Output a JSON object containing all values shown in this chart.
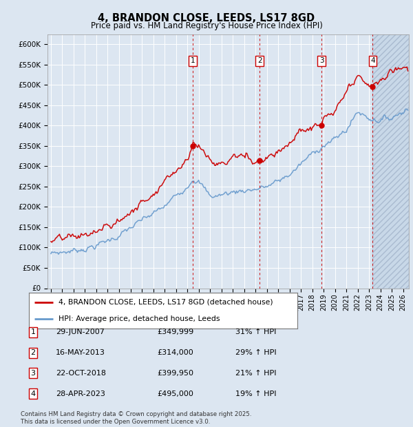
{
  "title": "4, BRANDON CLOSE, LEEDS, LS17 8GD",
  "subtitle": "Price paid vs. HM Land Registry's House Price Index (HPI)",
  "background_color": "#dce6f1",
  "plot_bg_color": "#dce6f1",
  "grid_color": "#ffffff",
  "ylim": [
    0,
    625000
  ],
  "yticks": [
    0,
    50000,
    100000,
    150000,
    200000,
    250000,
    300000,
    350000,
    400000,
    450000,
    500000,
    550000,
    600000
  ],
  "ytick_labels": [
    "£0",
    "£50K",
    "£100K",
    "£150K",
    "£200K",
    "£250K",
    "£300K",
    "£350K",
    "£400K",
    "£450K",
    "£500K",
    "£550K",
    "£600K"
  ],
  "xlim_start": 1994.7,
  "xlim_end": 2026.5,
  "transactions": [
    {
      "num": 1,
      "date": "29-JUN-2007",
      "price": 349999,
      "price_str": "£349,999",
      "pct": "31%",
      "year": 2007.49
    },
    {
      "num": 2,
      "date": "16-MAY-2013",
      "price": 314000,
      "price_str": "£314,000",
      "pct": "29%",
      "year": 2013.37
    },
    {
      "num": 3,
      "date": "22-OCT-2018",
      "price": 399950,
      "price_str": "£399,950",
      "pct": "21%",
      "year": 2018.81
    },
    {
      "num": 4,
      "date": "28-APR-2023",
      "price": 495000,
      "price_str": "£495,000",
      "pct": "19%",
      "year": 2023.32
    }
  ],
  "legend_label_red": "4, BRANDON CLOSE, LEEDS, LS17 8GD (detached house)",
  "legend_label_blue": "HPI: Average price, detached house, Leeds",
  "footnote": "Contains HM Land Registry data © Crown copyright and database right 2025.\nThis data is licensed under the Open Government Licence v3.0.",
  "red_color": "#cc0000",
  "blue_color": "#6699cc",
  "hatch_span_start": 2023.32
}
